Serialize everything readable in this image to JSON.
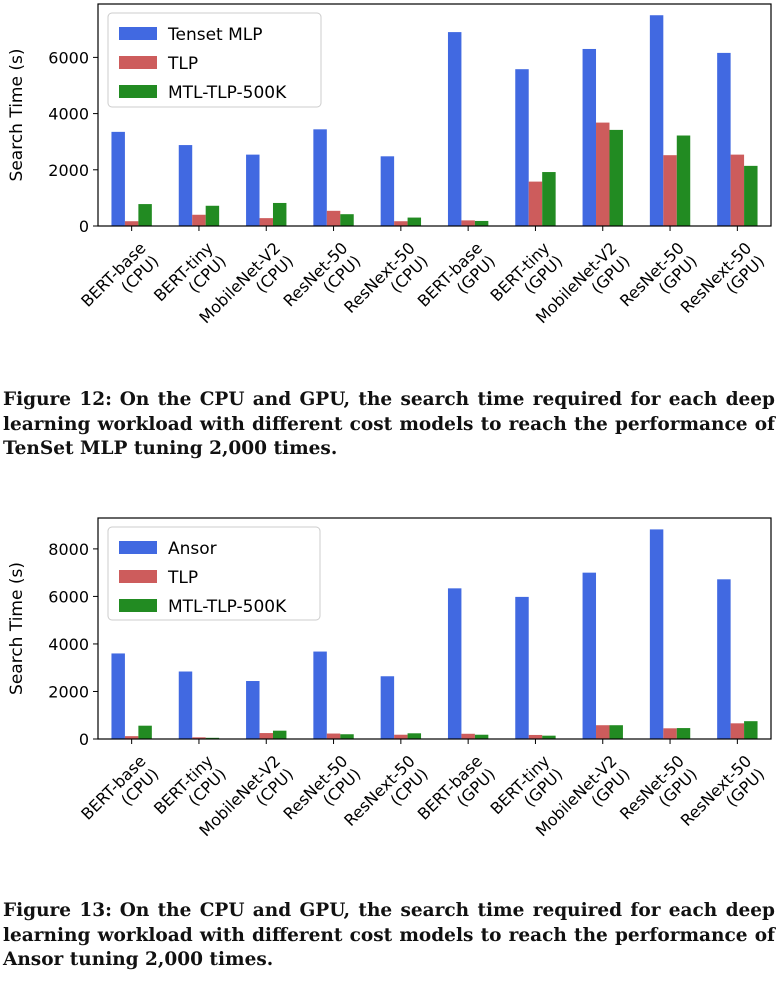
{
  "chart_data": [
    {
      "type": "bar",
      "categories": [
        "BERT-base\n(CPU)",
        "BERT-tiny\n(CPU)",
        "MobileNet-V2\n(CPU)",
        "ResNet-50\n(CPU)",
        "ResNext-50\n(CPU)",
        "BERT-base\n(GPU)",
        "BERT-tiny\n(GPU)",
        "MobileNet-V2\n(GPU)",
        "ResNet-50\n(GPU)",
        "ResNext-50\n(GPU)"
      ],
      "series": [
        {
          "name": "Tenset MLP",
          "color": "#4169e1",
          "values": [
            3350,
            2880,
            2540,
            3440,
            2480,
            6900,
            5580,
            6300,
            7500,
            6160
          ]
        },
        {
          "name": "TLP",
          "color": "#cd5c5c",
          "values": [
            170,
            400,
            280,
            540,
            170,
            200,
            1580,
            3680,
            2520,
            2540
          ]
        },
        {
          "name": "MTL-TLP-500K",
          "color": "#228b22",
          "values": [
            780,
            720,
            820,
            420,
            300,
            180,
            1920,
            3420,
            3220,
            2140
          ]
        }
      ],
      "ylabel": "Search Time (s)",
      "ylim": [
        0,
        7900
      ],
      "yticks": [
        0,
        2000,
        4000,
        6000
      ],
      "legend": "top-left",
      "grid": false
    },
    {
      "type": "bar",
      "categories": [
        "BERT-base\n(CPU)",
        "BERT-tiny\n(CPU)",
        "MobileNet-V2\n(CPU)",
        "ResNet-50\n(CPU)",
        "ResNext-50\n(CPU)",
        "BERT-base\n(GPU)",
        "BERT-tiny\n(GPU)",
        "MobileNet-V2\n(GPU)",
        "ResNet-50\n(GPU)",
        "ResNext-50\n(GPU)"
      ],
      "series": [
        {
          "name": "Ansor",
          "color": "#4169e1",
          "values": [
            3600,
            2840,
            2440,
            3680,
            2640,
            6340,
            5980,
            7000,
            8820,
            6720
          ]
        },
        {
          "name": "TLP",
          "color": "#cd5c5c",
          "values": [
            120,
            70,
            250,
            230,
            180,
            220,
            170,
            580,
            450,
            660
          ]
        },
        {
          "name": "MTL-TLP-500K",
          "color": "#228b22",
          "values": [
            560,
            50,
            350,
            200,
            240,
            180,
            140,
            580,
            460,
            750
          ]
        }
      ],
      "ylabel": "Search Time (s)",
      "ylim": [
        0,
        9300
      ],
      "yticks": [
        0,
        2000,
        4000,
        6000,
        8000
      ],
      "legend": "top-left",
      "grid": false
    }
  ],
  "captions": [
    {
      "label": "Figure 12:",
      "text": "On the CPU and GPU, the search time required for each deep learning workload with different cost models to reach the performance of TenSet MLP tuning 2,000 times."
    },
    {
      "label": "Figure 13:",
      "text": "On the CPU and GPU, the search time required for each deep learning workload with different cost models to reach the performance of Ansor tuning 2,000 times."
    }
  ]
}
